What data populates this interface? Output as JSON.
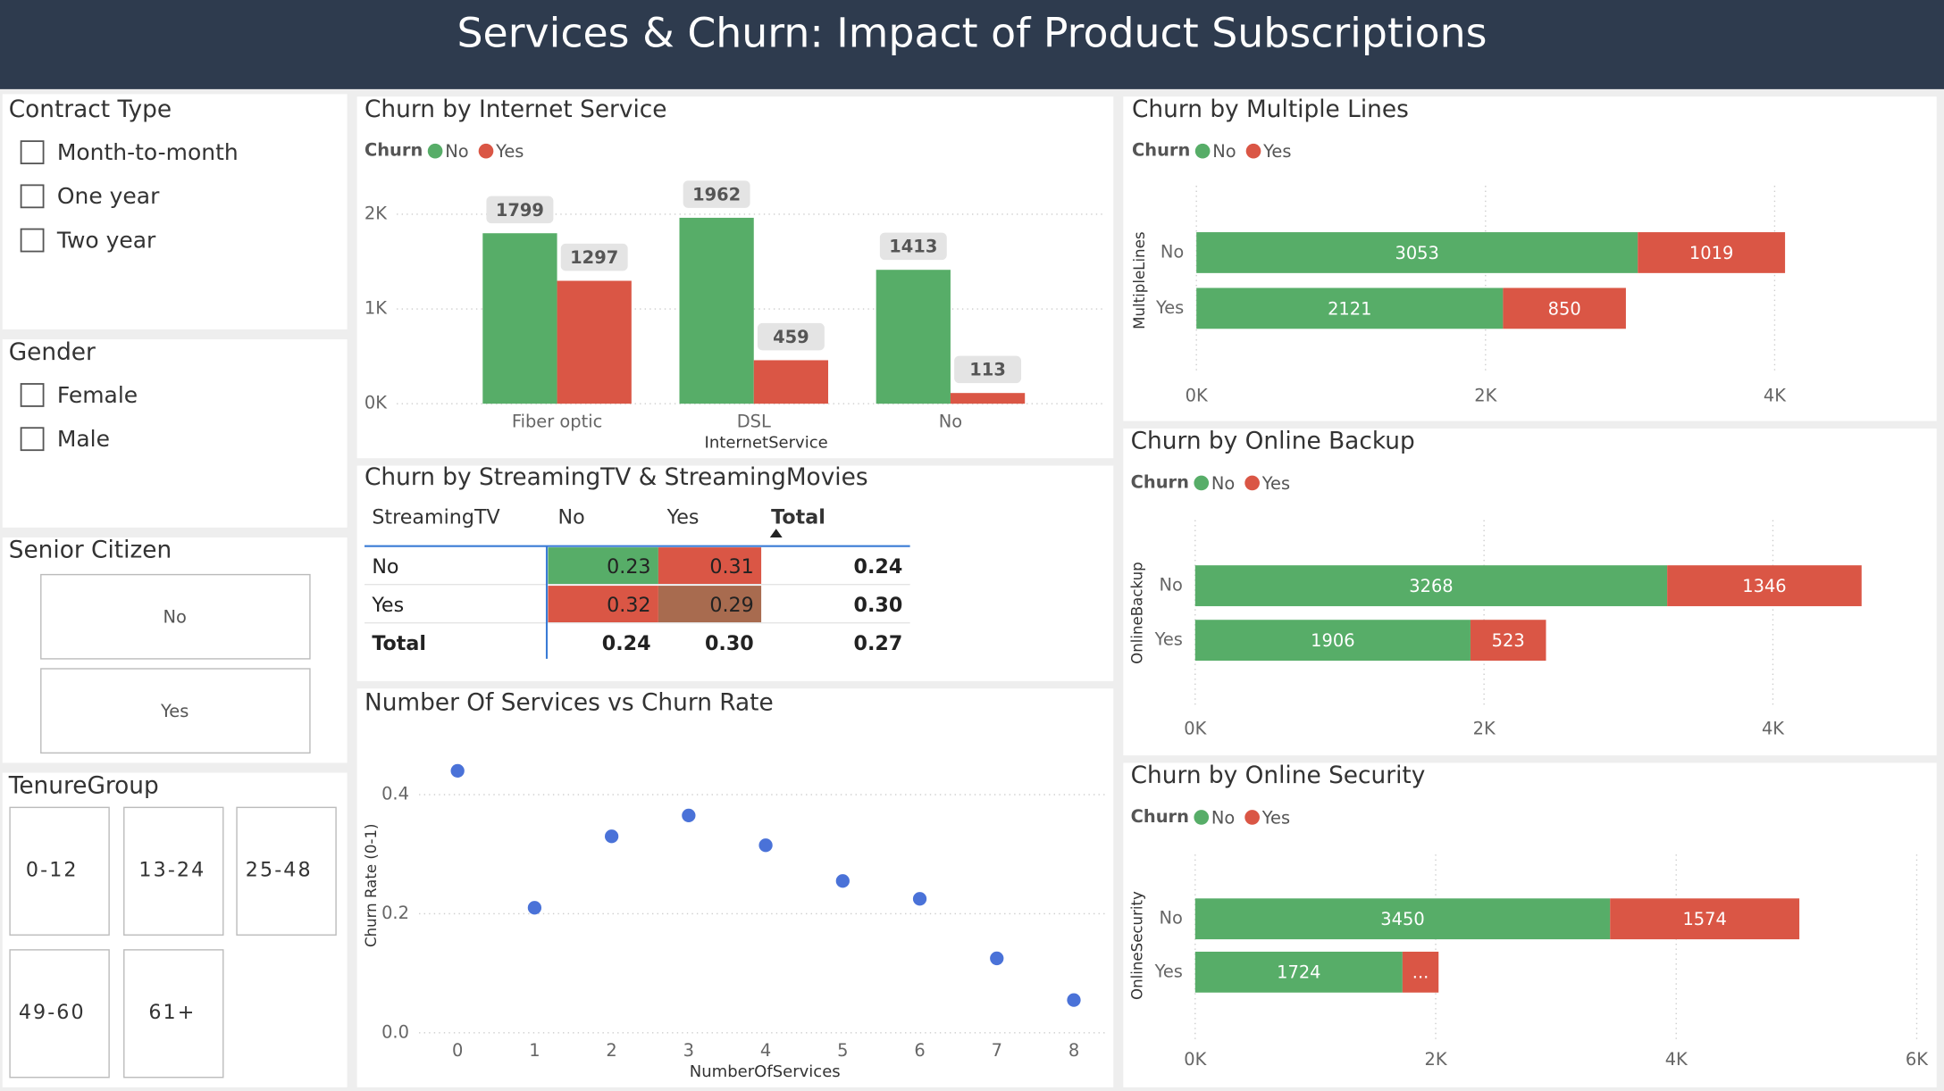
{
  "header": {
    "title": "Services & Churn: Impact of Product Subscriptions"
  },
  "slicers": [
    {
      "title": "Contract Type",
      "style": "checkbox",
      "options": [
        "Month-to-month",
        "One year",
        "Two year"
      ]
    },
    {
      "title": "Gender",
      "style": "checkbox",
      "options": [
        "Female",
        "Male"
      ]
    },
    {
      "title": "Senior Citizen",
      "style": "tile",
      "options": [
        "No",
        "Yes"
      ]
    },
    {
      "title": "TenureGroup",
      "style": "tile",
      "options": [
        "0-12",
        "13-24",
        "25-48",
        "49-60",
        "61+"
      ]
    }
  ],
  "chart_data": [
    {
      "type": "bar",
      "orientation": "vertical",
      "title": "Churn by Internet Service",
      "legend_title": "Churn",
      "x_label": "InternetService",
      "categories": [
        "Fiber optic",
        "DSL",
        "No"
      ],
      "series": [
        {
          "name": "No",
          "color": "#57ad68",
          "values": [
            1799,
            1962,
            1413
          ]
        },
        {
          "name": "Yes",
          "color": "#da5645",
          "values": [
            1297,
            459,
            113
          ]
        }
      ],
      "ylim": [
        0,
        2300
      ],
      "yticks": [
        {
          "value": 0,
          "label": "0K"
        },
        {
          "value": 1000,
          "label": "1K"
        },
        {
          "value": 2000,
          "label": "2K"
        }
      ],
      "grid": true
    },
    {
      "type": "bar",
      "orientation": "horizontal",
      "stacked": true,
      "title": "Churn by Multiple Lines",
      "legend_title": "Churn",
      "y_label": "MultipleLines",
      "categories": [
        "No",
        "Yes"
      ],
      "series": [
        {
          "name": "No",
          "color": "#57ad68",
          "values": [
            3053,
            2121
          ]
        },
        {
          "name": "Yes",
          "color": "#da5645",
          "values": [
            1019,
            850
          ]
        }
      ],
      "xlim": [
        0,
        5000
      ],
      "xticks": [
        {
          "value": 0,
          "label": "0K"
        },
        {
          "value": 2000,
          "label": "2K"
        },
        {
          "value": 4000,
          "label": "4K"
        }
      ],
      "grid": true
    },
    {
      "type": "bar",
      "orientation": "horizontal",
      "stacked": true,
      "title": "Churn by Online Backup",
      "legend_title": "Churn",
      "y_label": "OnlineBackup",
      "categories": [
        "No",
        "Yes"
      ],
      "series": [
        {
          "name": "No",
          "color": "#57ad68",
          "values": [
            3268,
            1906
          ]
        },
        {
          "name": "Yes",
          "color": "#da5645",
          "values": [
            1346,
            523
          ]
        }
      ],
      "xlim": [
        0,
        5000
      ],
      "xticks": [
        {
          "value": 0,
          "label": "0K"
        },
        {
          "value": 2000,
          "label": "2K"
        },
        {
          "value": 4000,
          "label": "4K"
        }
      ],
      "grid": true
    },
    {
      "type": "bar",
      "orientation": "horizontal",
      "stacked": true,
      "title": "Churn by Online Security",
      "legend_title": "Churn",
      "y_label": "OnlineSecurity",
      "categories": [
        "No",
        "Yes"
      ],
      "series": [
        {
          "name": "No",
          "color": "#57ad68",
          "values": [
            3450,
            1724
          ]
        },
        {
          "name": "Yes",
          "color": "#da5645",
          "values": [
            1574,
            300
          ],
          "value_labels": [
            "1574",
            "..."
          ]
        }
      ],
      "xlim": [
        0,
        6000
      ],
      "xticks": [
        {
          "value": 0,
          "label": "0K"
        },
        {
          "value": 2000,
          "label": "2K"
        },
        {
          "value": 4000,
          "label": "4K"
        },
        {
          "value": 6000,
          "label": "6K"
        }
      ],
      "grid": true
    },
    {
      "type": "scatter",
      "title": "Number Of Services vs Churn Rate",
      "x_label": "NumberOfServices",
      "y_label": "Churn Rate (0-1)",
      "x": [
        0,
        1,
        2,
        3,
        4,
        5,
        6,
        7,
        8
      ],
      "values": [
        0.44,
        0.21,
        0.33,
        0.365,
        0.315,
        0.255,
        0.225,
        0.125,
        0.055
      ],
      "color": "#4a72d8",
      "xlim": [
        -0.5,
        8.4
      ],
      "xticks": [
        0,
        1,
        2,
        3,
        4,
        5,
        6,
        7,
        8
      ],
      "ylim": [
        0,
        0.47
      ],
      "yticks": [
        {
          "value": 0,
          "label": "0.0"
        },
        0.2,
        0.4
      ],
      "grid": true
    }
  ],
  "table": {
    "title": "Churn by StreamingTV & StreamingMovies",
    "header": [
      "StreamingTV",
      "No",
      "Yes",
      "Total"
    ],
    "rows": [
      [
        "No",
        "0.23",
        "0.31",
        "0.24"
      ],
      [
        "Yes",
        "0.32",
        "0.29",
        "0.30"
      ],
      [
        "Total",
        "0.24",
        "0.30",
        "0.27"
      ]
    ],
    "cell_colors": [
      [
        "#57ad68",
        "#da5645"
      ],
      [
        "#da5645",
        "#a86b4f"
      ]
    ]
  }
}
